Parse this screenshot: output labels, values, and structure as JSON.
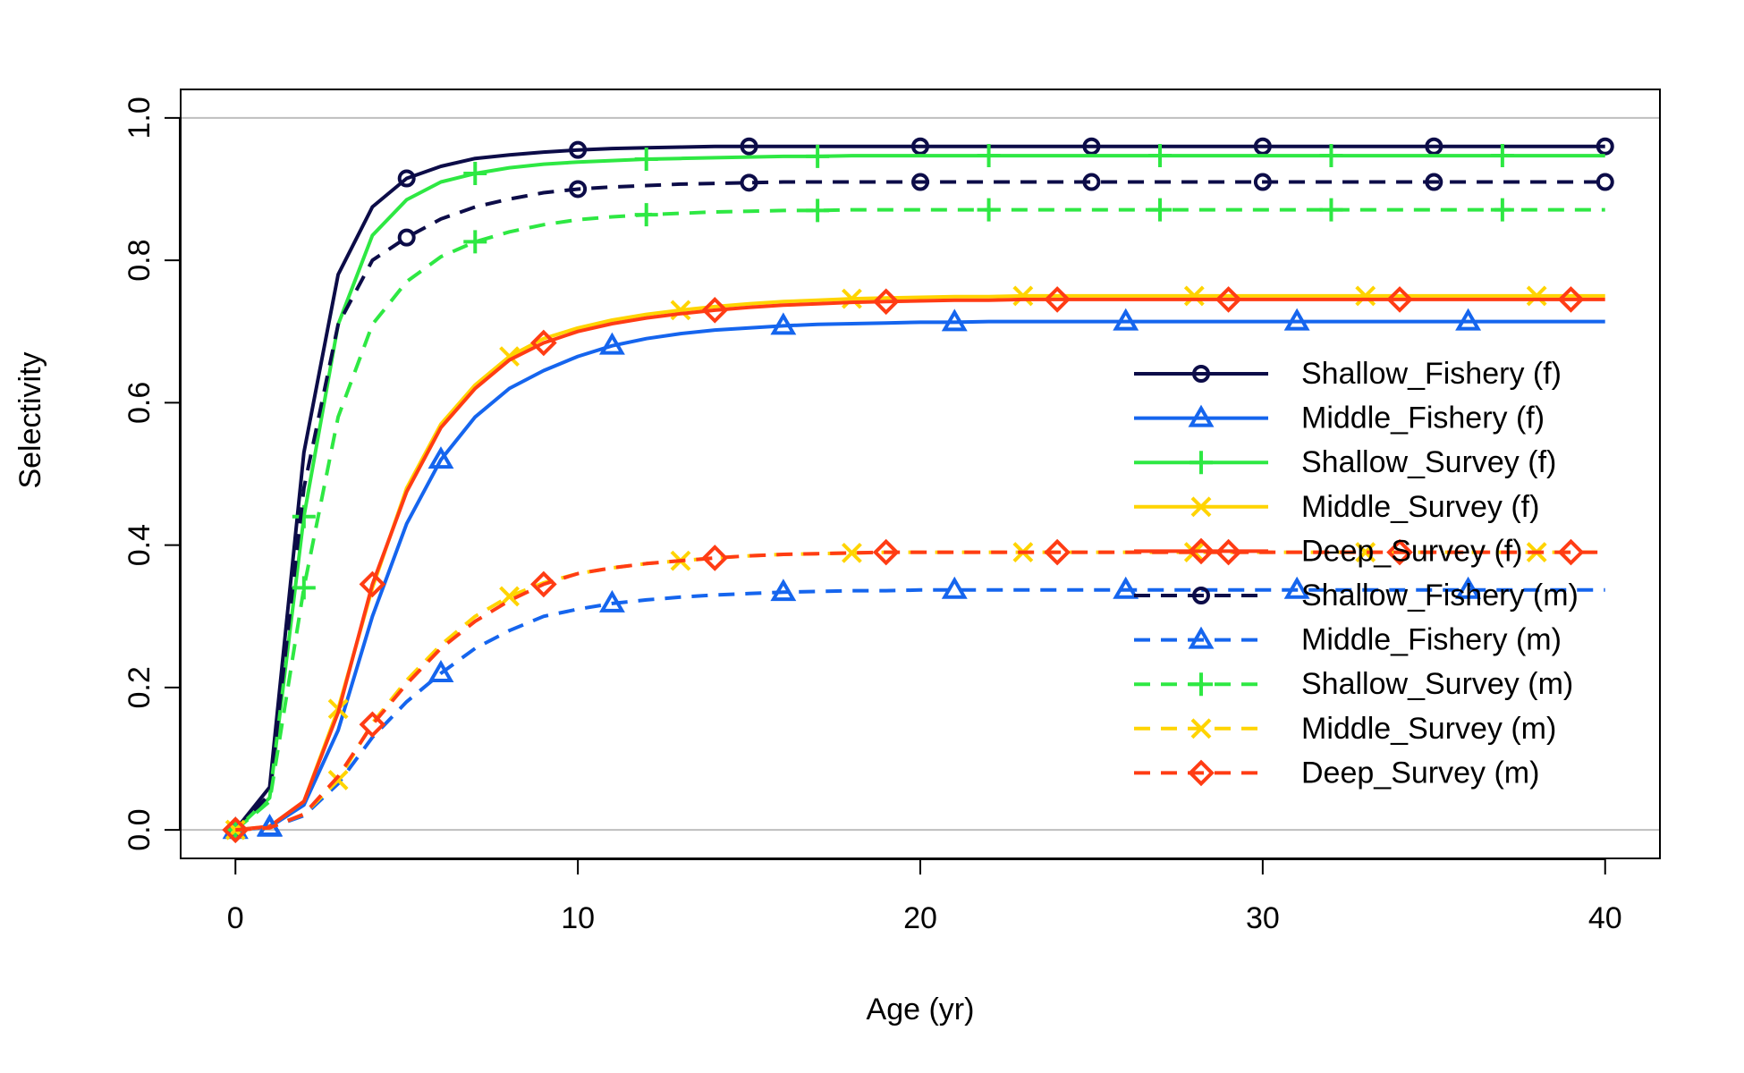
{
  "chart_data": {
    "type": "line",
    "xlabel": "Age (yr)",
    "ylabel": "Selectivity",
    "xlim": [
      -1.6,
      41.6
    ],
    "ylim": [
      -0.04,
      1.04
    ],
    "x_ticks": [
      0,
      10,
      20,
      30,
      40
    ],
    "y_ticks": [
      0.0,
      0.2,
      0.4,
      0.6,
      0.8,
      1.0
    ],
    "x_tick_labels": [
      "0",
      "10",
      "20",
      "30",
      "40"
    ],
    "y_tick_labels": [
      "0.0",
      "0.2",
      "0.4",
      "0.6",
      "0.8",
      "1.0"
    ],
    "reference_lines_y": [
      0,
      1
    ],
    "grid": false,
    "legend_position": "right",
    "x": [
      0,
      1,
      2,
      3,
      4,
      5,
      6,
      7,
      8,
      9,
      10,
      11,
      12,
      13,
      14,
      15,
      16,
      17,
      18,
      19,
      20,
      21,
      22,
      23,
      24,
      25,
      26,
      27,
      28,
      29,
      30,
      31,
      32,
      33,
      34,
      35,
      36,
      37,
      38,
      39,
      40
    ],
    "series": [
      {
        "name": "Shallow_Fishery (f)",
        "color": "#0c0c48",
        "dash": "solid",
        "marker": "circle",
        "marker_start": 0,
        "values": [
          0,
          0.06,
          0.53,
          0.78,
          0.875,
          0.915,
          0.932,
          0.943,
          0.948,
          0.952,
          0.955,
          0.957,
          0.958,
          0.959,
          0.96,
          0.96,
          0.96,
          0.96,
          0.96,
          0.96,
          0.96,
          0.96,
          0.96,
          0.96,
          0.96,
          0.96,
          0.96,
          0.96,
          0.96,
          0.96,
          0.96,
          0.96,
          0.96,
          0.96,
          0.96,
          0.96,
          0.96,
          0.96,
          0.96,
          0.96,
          0.96
        ]
      },
      {
        "name": "Middle_Fishery (f)",
        "color": "#1565ee",
        "dash": "solid",
        "marker": "triangle",
        "marker_start": 1,
        "values": [
          0,
          0.004,
          0.035,
          0.14,
          0.3,
          0.43,
          0.52,
          0.58,
          0.62,
          0.645,
          0.665,
          0.68,
          0.69,
          0.697,
          0.702,
          0.705,
          0.708,
          0.71,
          0.711,
          0.712,
          0.713,
          0.713,
          0.714,
          0.714,
          0.714,
          0.714,
          0.714,
          0.714,
          0.714,
          0.714,
          0.714,
          0.714,
          0.714,
          0.714,
          0.714,
          0.714,
          0.714,
          0.714,
          0.714,
          0.714,
          0.714
        ]
      },
      {
        "name": "Shallow_Survey (f)",
        "color": "#2ee843",
        "dash": "solid",
        "marker": "plus",
        "marker_start": 2,
        "values": [
          0,
          0.045,
          0.44,
          0.71,
          0.835,
          0.885,
          0.91,
          0.922,
          0.93,
          0.935,
          0.938,
          0.94,
          0.942,
          0.943,
          0.944,
          0.945,
          0.946,
          0.946,
          0.947,
          0.947,
          0.947,
          0.947,
          0.947,
          0.947,
          0.947,
          0.947,
          0.947,
          0.947,
          0.947,
          0.947,
          0.947,
          0.947,
          0.947,
          0.947,
          0.947,
          0.947,
          0.947,
          0.947,
          0.947,
          0.947,
          0.947
        ]
      },
      {
        "name": "Middle_Survey (f)",
        "color": "#ffd400",
        "dash": "solid",
        "marker": "x",
        "marker_start": 3,
        "values": [
          0,
          0.005,
          0.04,
          0.17,
          0.34,
          0.48,
          0.57,
          0.625,
          0.665,
          0.69,
          0.705,
          0.716,
          0.724,
          0.73,
          0.735,
          0.739,
          0.742,
          0.744,
          0.746,
          0.747,
          0.748,
          0.749,
          0.749,
          0.75,
          0.75,
          0.75,
          0.75,
          0.75,
          0.75,
          0.75,
          0.75,
          0.75,
          0.75,
          0.75,
          0.75,
          0.75,
          0.75,
          0.75,
          0.75,
          0.75,
          0.75
        ]
      },
      {
        "name": "Deep_Survey (f)",
        "color": "#ff3c14",
        "dash": "solid",
        "marker": "diamond",
        "marker_start": 4,
        "values": [
          0,
          0.005,
          0.04,
          0.165,
          0.345,
          0.475,
          0.565,
          0.62,
          0.66,
          0.684,
          0.7,
          0.711,
          0.719,
          0.725,
          0.73,
          0.734,
          0.737,
          0.739,
          0.741,
          0.742,
          0.743,
          0.744,
          0.744,
          0.745,
          0.745,
          0.745,
          0.745,
          0.745,
          0.745,
          0.745,
          0.745,
          0.745,
          0.745,
          0.745,
          0.745,
          0.745,
          0.745,
          0.745,
          0.745,
          0.745,
          0.745
        ]
      },
      {
        "name": "Shallow_Fishery (m)",
        "color": "#0c0c48",
        "dash": "dashed",
        "marker": "circle",
        "marker_start": 0,
        "values": [
          0,
          0.05,
          0.48,
          0.71,
          0.8,
          0.832,
          0.858,
          0.875,
          0.886,
          0.895,
          0.9,
          0.903,
          0.905,
          0.907,
          0.908,
          0.909,
          0.91,
          0.91,
          0.91,
          0.91,
          0.91,
          0.91,
          0.91,
          0.91,
          0.91,
          0.91,
          0.91,
          0.91,
          0.91,
          0.91,
          0.91,
          0.91,
          0.91,
          0.91,
          0.91,
          0.91,
          0.91,
          0.91,
          0.91,
          0.91,
          0.91
        ]
      },
      {
        "name": "Middle_Fishery (m)",
        "color": "#1565ee",
        "dash": "dashed",
        "marker": "triangle",
        "marker_start": 1,
        "values": [
          0,
          0.003,
          0.02,
          0.065,
          0.13,
          0.18,
          0.22,
          0.255,
          0.28,
          0.3,
          0.31,
          0.318,
          0.323,
          0.327,
          0.33,
          0.332,
          0.334,
          0.335,
          0.336,
          0.336,
          0.337,
          0.337,
          0.337,
          0.337,
          0.337,
          0.337,
          0.337,
          0.337,
          0.337,
          0.337,
          0.337,
          0.337,
          0.337,
          0.337,
          0.337,
          0.337,
          0.337,
          0.337,
          0.337,
          0.337,
          0.337
        ]
      },
      {
        "name": "Shallow_Survey (m)",
        "color": "#2ee843",
        "dash": "dashed",
        "marker": "plus",
        "marker_start": 2,
        "values": [
          0,
          0.04,
          0.34,
          0.58,
          0.71,
          0.77,
          0.805,
          0.826,
          0.84,
          0.85,
          0.857,
          0.861,
          0.864,
          0.866,
          0.868,
          0.869,
          0.87,
          0.87,
          0.871,
          0.871,
          0.871,
          0.871,
          0.871,
          0.871,
          0.871,
          0.871,
          0.871,
          0.871,
          0.871,
          0.871,
          0.871,
          0.871,
          0.871,
          0.871,
          0.871,
          0.871,
          0.871,
          0.871,
          0.871,
          0.871,
          0.871
        ]
      },
      {
        "name": "Middle_Survey (m)",
        "color": "#ffd400",
        "dash": "dashed",
        "marker": "x",
        "marker_start": 3,
        "values": [
          0,
          0.003,
          0.022,
          0.07,
          0.15,
          0.21,
          0.26,
          0.3,
          0.328,
          0.347,
          0.36,
          0.368,
          0.374,
          0.378,
          0.382,
          0.385,
          0.387,
          0.388,
          0.389,
          0.39,
          0.39,
          0.39,
          0.39,
          0.39,
          0.39,
          0.39,
          0.39,
          0.39,
          0.39,
          0.39,
          0.39,
          0.39,
          0.39,
          0.39,
          0.39,
          0.39,
          0.39,
          0.39,
          0.39,
          0.39,
          0.39
        ]
      },
      {
        "name": "Deep_Survey (m)",
        "color": "#ff3c14",
        "dash": "dashed",
        "marker": "diamond",
        "marker_start": 4,
        "values": [
          0,
          0.003,
          0.022,
          0.075,
          0.148,
          0.205,
          0.255,
          0.293,
          0.322,
          0.345,
          0.36,
          0.368,
          0.374,
          0.378,
          0.382,
          0.385,
          0.387,
          0.388,
          0.389,
          0.39,
          0.39,
          0.39,
          0.39,
          0.39,
          0.39,
          0.39,
          0.39,
          0.39,
          0.39,
          0.39,
          0.39,
          0.39,
          0.39,
          0.39,
          0.39,
          0.39,
          0.39,
          0.39,
          0.39,
          0.39,
          0.39
        ]
      }
    ]
  }
}
